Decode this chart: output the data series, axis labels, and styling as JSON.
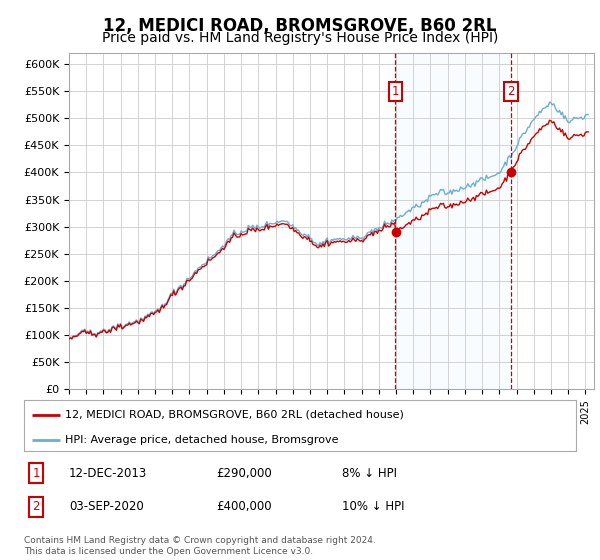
{
  "title": "12, MEDICI ROAD, BROMSGROVE, B60 2RL",
  "subtitle": "Price paid vs. HM Land Registry's House Price Index (HPI)",
  "title_fontsize": 12,
  "subtitle_fontsize": 10,
  "background_color": "#ffffff",
  "plot_bg_color": "#ffffff",
  "grid_color": "#cccccc",
  "xlim_start": 1995.0,
  "xlim_end": 2025.5,
  "ylim_min": 0,
  "ylim_max": 620000,
  "yticks": [
    0,
    50000,
    100000,
    150000,
    200000,
    250000,
    300000,
    350000,
    400000,
    450000,
    500000,
    550000,
    600000
  ],
  "ytick_labels": [
    "£0",
    "£50K",
    "£100K",
    "£150K",
    "£200K",
    "£250K",
    "£300K",
    "£350K",
    "£400K",
    "£450K",
    "£500K",
    "£550K",
    "£600K"
  ],
  "hpi_color": "#6baed6",
  "price_color": "#cc0000",
  "marker_color": "#cc0000",
  "vline_color": "#cc0000",
  "vline_style": "--",
  "shade_color": "#ddeeff",
  "annotation_box_color": "#cc0000",
  "purchase1_date": 2013.96,
  "purchase1_price": 290000,
  "purchase1_label": "1",
  "purchase2_date": 2020.67,
  "purchase2_price": 400000,
  "purchase2_label": "2",
  "legend_label_price": "12, MEDICI ROAD, BROMSGROVE, B60 2RL (detached house)",
  "legend_label_hpi": "HPI: Average price, detached house, Bromsgrove",
  "footer1": "Contains HM Land Registry data © Crown copyright and database right 2024.",
  "footer2": "This data is licensed under the Open Government Licence v3.0.",
  "table_row1_num": "1",
  "table_row1_date": "12-DEC-2013",
  "table_row1_price": "£290,000",
  "table_row1_hpi": "8% ↓ HPI",
  "table_row2_num": "2",
  "table_row2_date": "03-SEP-2020",
  "table_row2_price": "£400,000",
  "table_row2_hpi": "10% ↓ HPI"
}
